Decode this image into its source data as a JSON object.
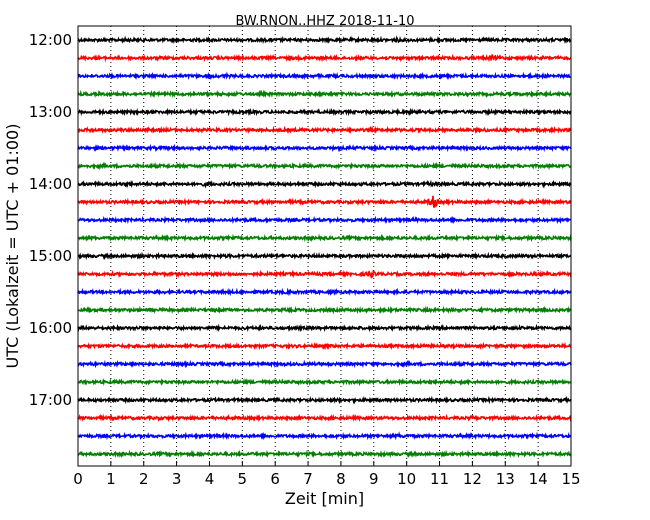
{
  "chart_data": {
    "type": "line",
    "title": "BW.RNON..HHZ 2018-11-10",
    "xlabel": "Zeit  [min]",
    "ylabel": "UTC (Lokalzeit = UTC + 01:00)",
    "xlim": [
      0,
      15
    ],
    "x_ticks": [
      "0",
      "1",
      "2",
      "3",
      "4",
      "5",
      "6",
      "7",
      "8",
      "9",
      "10",
      "11",
      "12",
      "13",
      "14",
      "15"
    ],
    "y_tick_labels": [
      "12:00",
      "13:00",
      "14:00",
      "15:00",
      "16:00",
      "17:00"
    ],
    "grid": "vertical dotted",
    "trace_colors": [
      "#000000",
      "#ff0000",
      "#0000ff",
      "#008000"
    ],
    "traces": [
      {
        "start": "12:00",
        "events": [
          {
            "x": 1.5,
            "amp": 1.3
          },
          {
            "x": 9.7,
            "amp": 1.6
          }
        ]
      },
      {
        "start": "12:15",
        "events": [
          {
            "x": 12.6,
            "amp": 2.2
          },
          {
            "x": 6.5,
            "amp": 1.2
          }
        ]
      },
      {
        "start": "12:30",
        "events": [
          {
            "x": 4.5,
            "amp": 1.4
          }
        ]
      },
      {
        "start": "12:45",
        "events": [
          {
            "x": 4.8,
            "amp": 1.2
          }
        ]
      },
      {
        "start": "13:00",
        "events": [
          {
            "x": 2.3,
            "amp": 1.1
          }
        ]
      },
      {
        "start": "13:15",
        "events": [
          {
            "x": 0.4,
            "amp": 1.4
          },
          {
            "x": 12.4,
            "amp": 1.3
          }
        ]
      },
      {
        "start": "13:30",
        "events": []
      },
      {
        "start": "13:45",
        "events": [
          {
            "x": 9.0,
            "amp": 1.1
          }
        ]
      },
      {
        "start": "14:00",
        "events": [
          {
            "x": 1.5,
            "amp": 1.4
          },
          {
            "x": 3.9,
            "amp": 1.6
          },
          {
            "x": 10.7,
            "amp": 1.5
          }
        ]
      },
      {
        "start": "14:15",
        "events": [
          {
            "x": 10.8,
            "amp": 5.0
          }
        ]
      },
      {
        "start": "14:30",
        "events": [
          {
            "x": 10.2,
            "amp": 1.1
          }
        ]
      },
      {
        "start": "14:45",
        "events": []
      },
      {
        "start": "15:00",
        "events": [
          {
            "x": 2.4,
            "amp": 1.2
          },
          {
            "x": 4.6,
            "amp": 1.2
          },
          {
            "x": 6.2,
            "amp": 1.1
          }
        ]
      },
      {
        "start": "15:15",
        "events": [
          {
            "x": 8.9,
            "amp": 2.6
          },
          {
            "x": 7.1,
            "amp": 1.3
          }
        ]
      },
      {
        "start": "15:30",
        "events": [
          {
            "x": 6.4,
            "amp": 1.3
          }
        ]
      },
      {
        "start": "15:45",
        "events": [
          {
            "x": 10.7,
            "amp": 1.1
          }
        ]
      },
      {
        "start": "16:00",
        "events": [
          {
            "x": 1.8,
            "amp": 1.3
          }
        ]
      },
      {
        "start": "16:15",
        "events": []
      },
      {
        "start": "16:30",
        "events": []
      },
      {
        "start": "16:45",
        "events": [
          {
            "x": 11.8,
            "amp": 1.2
          }
        ]
      },
      {
        "start": "17:00",
        "events": [
          {
            "x": 7.9,
            "amp": 1.2
          }
        ]
      },
      {
        "start": "17:15",
        "events": [
          {
            "x": 12.1,
            "amp": 2.0
          },
          {
            "x": 2.4,
            "amp": 1.2
          }
        ]
      },
      {
        "start": "17:30",
        "events": [
          {
            "x": 9.8,
            "amp": 1.5
          },
          {
            "x": 8.0,
            "amp": 1.2
          }
        ]
      },
      {
        "start": "17:45",
        "events": []
      }
    ]
  }
}
